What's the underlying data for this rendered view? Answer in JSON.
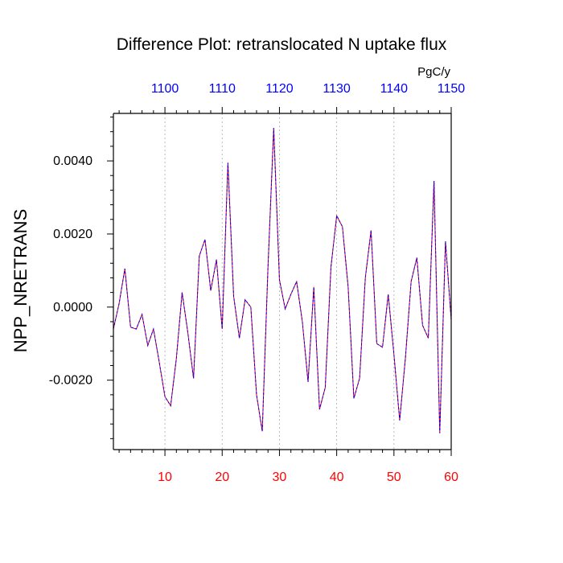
{
  "chart_data": {
    "type": "line",
    "title": "Difference Plot: retranslocated N uptake flux",
    "ylabel": "NPP_NRETRANS",
    "top_units": "PgC/y",
    "xlim": [
      1,
      60
    ],
    "ylim": [
      -0.0039,
      0.0053
    ],
    "bottom_ticks": [
      "10",
      "20",
      "30",
      "40",
      "50",
      "60"
    ],
    "top_ticks": [
      "1100",
      "1110",
      "1120",
      "1130",
      "1140",
      "1150"
    ],
    "y_ticks": [
      "0.0040",
      "0.0020",
      "0.0000",
      "-0.0020"
    ],
    "colors": {
      "bottom_tick_labels": "#ff0000",
      "top_tick_labels": "#0000ff",
      "series_a": "#ff0000",
      "series_b": "#0000ff",
      "grid": "#aaaaaa"
    },
    "grid": "vertical dashed at major x ticks",
    "series": [
      {
        "x": [
          1,
          2,
          3,
          4,
          5,
          6,
          7,
          8,
          9,
          10,
          11,
          12,
          13,
          14,
          15,
          16,
          17,
          18,
          19,
          20,
          21,
          22,
          23,
          24,
          25,
          26,
          27,
          28,
          29,
          30,
          31,
          32,
          33,
          34,
          35,
          36,
          37,
          38,
          39,
          40,
          41,
          42,
          43,
          44,
          45,
          46,
          47,
          48,
          49,
          50,
          51,
          52,
          53,
          54,
          55,
          56,
          57,
          58,
          59,
          60
        ],
        "values": [
          -0.0006,
          0.0001,
          0.00105,
          -0.00055,
          -0.0006,
          -0.0002,
          -0.00105,
          -0.0006,
          -0.0015,
          -0.00245,
          -0.0027,
          -0.0014,
          0.0004,
          -0.0007,
          -0.00195,
          0.0014,
          0.00185,
          0.00045,
          0.0013,
          -0.0006,
          0.00395,
          0.0003,
          -0.00085,
          0.0002,
          0.0,
          -0.0024,
          -0.0034,
          0.0011,
          0.0049,
          0.00075,
          -5e-05,
          0.00035,
          0.0007,
          -0.0004,
          -0.00205,
          0.00055,
          -0.0028,
          -0.0022,
          0.0011,
          0.0025,
          0.0022,
          0.00055,
          -0.0025,
          -0.00195,
          0.0008,
          0.0021,
          -0.001,
          -0.0011,
          0.00035,
          -0.0013,
          -0.0031,
          -0.0014,
          0.0007,
          0.00135,
          -0.0005,
          -0.00085,
          0.00345,
          -0.00345,
          0.0018,
          -0.00035
        ]
      }
    ]
  }
}
